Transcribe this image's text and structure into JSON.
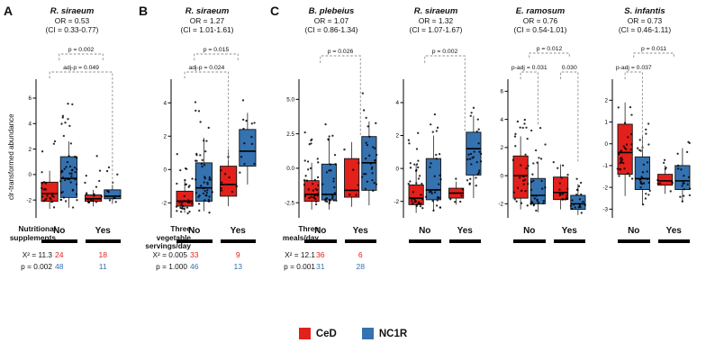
{
  "figure": {
    "panel_labels": [
      "A",
      "B",
      "C"
    ],
    "y_axis_label": "clr-transformed abundance",
    "legend": [
      {
        "label": "CeD",
        "color": "#e2201c"
      },
      {
        "label": "NC1R",
        "color": "#3572b0"
      }
    ]
  },
  "chart_data": [
    {
      "type": "box",
      "panel": "A",
      "title": "R. siraeum",
      "or": "OR = 0.53",
      "ci": "(CI = 0.33-0.77)",
      "x_groups": [
        "No",
        "Yes"
      ],
      "group_axis_label": "Nutritional supplements",
      "ylim": [
        -3.4,
        7.2
      ],
      "yticks": [
        {
          "v": 6,
          "t": "6"
        },
        {
          "v": 4,
          "t": "4"
        },
        {
          "v": 2,
          "t": "2"
        },
        {
          "v": 0,
          "t": "0"
        },
        {
          "v": -2,
          "t": "-2"
        }
      ],
      "brackets": [
        {
          "label": "p = 0.002",
          "x1": 0.5,
          "x2": 2.5,
          "y": 16,
          "dl": 7,
          "dr": 7
        },
        {
          "label": "adj-p = 0.049",
          "x1": 0,
          "x2": 3,
          "y": 36,
          "dl": 7,
          "dr": 126
        }
      ],
      "boxes": [
        {
          "group": "No",
          "cohort": "CeD",
          "whisker_low": -2.7,
          "q1": -2.1,
          "median": -1.5,
          "q3": -0.6,
          "whisker_high": 0.3,
          "points_range": [
            -2.8,
            4.4
          ],
          "n": 24
        },
        {
          "group": "No",
          "cohort": "NC1R",
          "whisker_low": -2.6,
          "q1": -1.8,
          "median": -0.3,
          "q3": 1.4,
          "whisker_high": 2.6,
          "points_range": [
            -2.8,
            6.2
          ],
          "n": 48
        },
        {
          "group": "Yes",
          "cohort": "CeD",
          "whisker_low": -2.5,
          "q1": -2.1,
          "median": -1.9,
          "q3": -1.6,
          "whisker_high": -1.2,
          "points_range": [
            -2.6,
            2.0
          ],
          "n": 18
        },
        {
          "group": "Yes",
          "cohort": "NC1R",
          "whisker_low": -2.3,
          "q1": -1.9,
          "median": -1.7,
          "q3": -1.2,
          "whisker_high": -0.8,
          "points_range": [
            -2.4,
            2.1
          ],
          "n": 11
        }
      ],
      "table": {
        "chi2": "X² = 11.3",
        "p": "p = 0.002",
        "ced_counts": [
          "24",
          "18"
        ],
        "nc1r_counts": [
          "48",
          "11"
        ]
      }
    },
    {
      "type": "box",
      "panel": "B",
      "title": "R. siraeum",
      "or": "OR = 1.27",
      "ci": "(CI = 1.01-1.61)",
      "x_groups": [
        "No",
        "Yes"
      ],
      "group_axis_label": "Three vegetable servings/day",
      "ylim": [
        -2.9,
        5.2
      ],
      "yticks": [
        {
          "v": 4,
          "t": "4"
        },
        {
          "v": 2,
          "t": "2"
        },
        {
          "v": 0,
          "t": "0"
        },
        {
          "v": -2,
          "t": "-2"
        }
      ],
      "brackets": [
        {
          "label": "p = 0.015",
          "x1": 0.5,
          "x2": 2.5,
          "y": 16,
          "dl": 7,
          "dr": 7
        },
        {
          "label": "adj-p = 0.024",
          "x1": 0,
          "x2": 2,
          "y": 36,
          "dl": 7,
          "dr": 98
        }
      ],
      "boxes": [
        {
          "group": "No",
          "cohort": "CeD",
          "whisker_low": -2.6,
          "q1": -2.2,
          "median": -1.9,
          "q3": -1.3,
          "whisker_high": -0.6,
          "points_range": [
            -2.7,
            2.2
          ],
          "n": 33
        },
        {
          "group": "No",
          "cohort": "NC1R",
          "whisker_low": -2.5,
          "q1": -1.9,
          "median": -1.1,
          "q3": 0.4,
          "whisker_high": 1.9,
          "points_range": [
            -2.6,
            4.6
          ],
          "n": 46
        },
        {
          "group": "Yes",
          "cohort": "CeD",
          "whisker_low": -2.2,
          "q1": -1.6,
          "median": -0.9,
          "q3": 0.2,
          "whisker_high": 1.2,
          "points_range": [
            -2.3,
            2.6
          ],
          "n": 9
        },
        {
          "group": "Yes",
          "cohort": "NC1R",
          "whisker_low": -0.9,
          "q1": 0.2,
          "median": 1.1,
          "q3": 2.4,
          "whisker_high": 3.4,
          "points_range": [
            -1.2,
            4.4
          ],
          "n": 13
        }
      ],
      "table": {
        "chi2": "X² = 0.005",
        "p": "p = 1.000",
        "ced_counts": [
          "33",
          "9"
        ],
        "nc1r_counts": [
          "46",
          "13"
        ]
      }
    },
    {
      "type": "box",
      "panel": "C",
      "title": "B. plebeius",
      "or": "OR = 1.07",
      "ci": "(CI = 0.86-1.34)",
      "x_groups": [
        "No",
        "Yes"
      ],
      "group_axis_label": "Three meals/day",
      "ylim": [
        -3.6,
        6.2
      ],
      "yticks": [
        {
          "v": 5,
          "t": "5.0"
        },
        {
          "v": 2.5,
          "t": "2.5"
        },
        {
          "v": 0,
          "t": "0.0"
        },
        {
          "v": -2.5,
          "t": "-2.5"
        }
      ],
      "brackets": [
        {
          "label": "p = 0.026",
          "x1": 0.5,
          "x2": 2.5,
          "y": 18,
          "dl": 8,
          "dr": 88
        }
      ],
      "boxes": [
        {
          "group": "No",
          "cohort": "CeD",
          "whisker_low": -3.0,
          "q1": -2.4,
          "median": -1.9,
          "q3": -0.9,
          "whisker_high": 0.4,
          "points_range": [
            -3.1,
            3.2
          ],
          "n": 36
        },
        {
          "group": "No",
          "cohort": "NC1R",
          "whisker_low": -3.0,
          "q1": -2.3,
          "median": -1.9,
          "q3": 0.3,
          "whisker_high": 2.2,
          "points_range": [
            -3.1,
            4.0
          ],
          "n": 31
        },
        {
          "group": "Yes",
          "cohort": "CeD",
          "whisker_low": -2.8,
          "q1": -2.1,
          "median": -1.6,
          "q3": 0.7,
          "whisker_high": 1.9,
          "points_range": [
            -2.9,
            2.2
          ],
          "n": 6
        },
        {
          "group": "Yes",
          "cohort": "NC1R",
          "whisker_low": -2.7,
          "q1": -1.6,
          "median": 0.4,
          "q3": 2.3,
          "whisker_high": 3.4,
          "points_range": [
            -2.8,
            5.6
          ],
          "n": 28
        }
      ],
      "table": {
        "chi2": "X² = 12.1",
        "p": "p = 0.001",
        "ced_counts": [
          "36",
          "6"
        ],
        "nc1r_counts": [
          "31",
          "28"
        ]
      }
    },
    {
      "type": "box",
      "panel": "C",
      "title": "R. siraeum",
      "or": "OR = 1.32",
      "ci": "(CI = 1.07-1.67)",
      "x_groups": [
        "No",
        "Yes"
      ],
      "ylim": [
        -3.0,
        5.2
      ],
      "yticks": [
        {
          "v": 4,
          "t": "4"
        },
        {
          "v": 2,
          "t": "2"
        },
        {
          "v": 0,
          "t": "0"
        },
        {
          "v": -2,
          "t": "-2"
        }
      ],
      "brackets": [
        {
          "label": "p = 0.002",
          "x1": 0.5,
          "x2": 2.5,
          "y": 18,
          "dl": 8,
          "dr": 84
        }
      ],
      "boxes": [
        {
          "group": "No",
          "cohort": "CeD",
          "whisker_low": -2.7,
          "q1": -2.2,
          "median": -1.8,
          "q3": -1.0,
          "whisker_high": 0.2,
          "points_range": [
            -2.8,
            3.8
          ],
          "n": 36
        },
        {
          "group": "No",
          "cohort": "NC1R",
          "whisker_low": -2.6,
          "q1": -1.9,
          "median": -1.3,
          "q3": 0.6,
          "whisker_high": 2.0,
          "points_range": [
            -2.7,
            4.2
          ],
          "n": 31
        },
        {
          "group": "Yes",
          "cohort": "CeD",
          "whisker_low": -2.2,
          "q1": -1.8,
          "median": -1.5,
          "q3": -1.2,
          "whisker_high": -0.8,
          "points_range": [
            -2.3,
            0.5
          ],
          "n": 6
        },
        {
          "group": "Yes",
          "cohort": "NC1R",
          "whisker_low": -1.8,
          "q1": -0.4,
          "median": 1.2,
          "q3": 2.2,
          "whisker_high": 3.2,
          "points_range": [
            -2.0,
            4.4
          ],
          "n": 28
        }
      ]
    },
    {
      "type": "box",
      "panel": "C",
      "title": "E. ramosum",
      "or": "OR = 0.76",
      "ci": "(CI = 0.54-1.01)",
      "x_groups": [
        "No",
        "Yes"
      ],
      "ylim": [
        -3.0,
        6.6
      ],
      "yticks": [
        {
          "v": 6,
          "t": "6"
        },
        {
          "v": 4,
          "t": "4"
        },
        {
          "v": 2,
          "t": "2"
        },
        {
          "v": 0,
          "t": "0"
        },
        {
          "v": -2,
          "t": "-2"
        }
      ],
      "brackets": [
        {
          "label": "p = 0.012",
          "x1": 0.5,
          "x2": 2.5,
          "y": 15,
          "dl": 5,
          "dr": 5
        },
        {
          "label": "p-adj = 0.031",
          "x1": 0,
          "x2": 1,
          "y": 36,
          "dl": 8,
          "dr": 60
        },
        {
          "label": "0.030",
          "x1": 2,
          "x2": 3,
          "y": 36,
          "dl": 8,
          "dr": 100
        }
      ],
      "boxes": [
        {
          "group": "No",
          "cohort": "CeD",
          "whisker_low": -2.4,
          "q1": -1.6,
          "median": 0.0,
          "q3": 1.4,
          "whisker_high": 2.8,
          "points_range": [
            -2.5,
            5.8
          ],
          "n": 30
        },
        {
          "group": "No",
          "cohort": "NC1R",
          "whisker_low": -2.6,
          "q1": -2.0,
          "median": -1.4,
          "q3": -0.2,
          "whisker_high": 1.0,
          "points_range": [
            -2.7,
            4.0
          ],
          "n": 30
        },
        {
          "group": "Yes",
          "cohort": "CeD",
          "whisker_low": -2.4,
          "q1": -1.7,
          "median": -1.2,
          "q3": -0.1,
          "whisker_high": 0.8,
          "points_range": [
            -2.5,
            1.6
          ],
          "n": 18
        },
        {
          "group": "Yes",
          "cohort": "NC1R",
          "whisker_low": -2.8,
          "q1": -2.4,
          "median": -2.0,
          "q3": -1.4,
          "whisker_high": -0.6,
          "points_range": [
            -2.9,
            0.4
          ],
          "n": 20
        }
      ]
    },
    {
      "type": "box",
      "panel": "C",
      "title": "S. infantis",
      "or": "OR = 0.73",
      "ci": "(CI = 0.46-1.11)",
      "x_groups": [
        "No",
        "Yes"
      ],
      "ylim": [
        -3.4,
        2.8
      ],
      "yticks": [
        {
          "v": 2,
          "t": "2"
        },
        {
          "v": 1,
          "t": "1"
        },
        {
          "v": 0,
          "t": "0"
        },
        {
          "v": -1,
          "t": "-1"
        },
        {
          "v": -2,
          "t": "-2"
        },
        {
          "v": -3,
          "t": "-3"
        }
      ],
      "brackets": [
        {
          "label": "p = 0.011",
          "x1": 0.5,
          "x2": 2.5,
          "y": 15,
          "dl": 5,
          "dr": 5
        },
        {
          "label": "p-adj = 0.037",
          "x1": 0,
          "x2": 1,
          "y": 36,
          "dl": 8,
          "dr": 88
        }
      ],
      "boxes": [
        {
          "group": "No",
          "cohort": "CeD",
          "whisker_low": -2.4,
          "q1": -1.4,
          "median": -0.4,
          "q3": 0.9,
          "whisker_high": 1.9,
          "points_range": [
            -2.6,
            2.2
          ],
          "n": 30
        },
        {
          "group": "No",
          "cohort": "NC1R",
          "whisker_low": -2.8,
          "q1": -2.1,
          "median": -1.6,
          "q3": -0.6,
          "whisker_high": 0.4,
          "points_range": [
            -2.9,
            1.6
          ],
          "n": 30
        },
        {
          "group": "Yes",
          "cohort": "CeD",
          "whisker_low": -2.3,
          "q1": -1.9,
          "median": -1.7,
          "q3": -1.4,
          "whisker_high": -1.0,
          "points_range": [
            -2.4,
            -0.6
          ],
          "n": 10
        },
        {
          "group": "Yes",
          "cohort": "NC1R",
          "whisker_low": -2.7,
          "q1": -2.1,
          "median": -1.7,
          "q3": -1.0,
          "whisker_high": -0.2,
          "points_range": [
            -2.8,
            0.6
          ],
          "n": 20
        }
      ]
    }
  ]
}
